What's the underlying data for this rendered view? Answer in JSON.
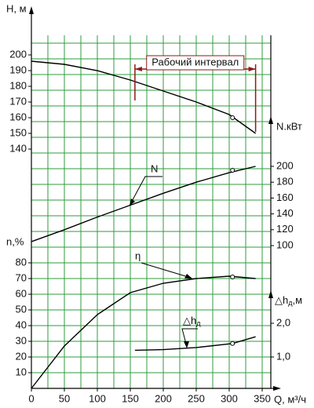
{
  "chart_data": [
    {
      "type": "line",
      "ylabel": "H, м",
      "xlabel": "Q, м³/ч",
      "xlim": [
        0,
        350
      ],
      "xticks": [
        0,
        50,
        100,
        150,
        200,
        250,
        300,
        350
      ],
      "ylim": [
        140,
        200
      ],
      "yticks": [
        140,
        150,
        160,
        170,
        180,
        190,
        200
      ],
      "x": [
        0,
        50,
        100,
        150,
        200,
        250,
        300,
        340
      ],
      "series": [
        {
          "values": [
            196,
            194,
            190,
            184,
            177,
            170,
            162,
            150
          ],
          "color": "#000000"
        }
      ],
      "marker": {
        "x": 305,
        "y": 160
      },
      "annotation": "Рабочий интервал",
      "interval": [
        157,
        340
      ],
      "interval_color": "#8b1a1a"
    },
    {
      "type": "line",
      "ylabel": "N.кВт",
      "ylim": [
        100,
        200
      ],
      "yticks": [
        100,
        120,
        140,
        160,
        180,
        200
      ],
      "x": [
        0,
        50,
        100,
        150,
        200,
        250,
        300,
        340
      ],
      "series": [
        {
          "values": [
            105,
            120,
            136,
            151,
            166,
            180,
            192,
            200
          ],
          "color": "#000000"
        }
      ],
      "marker": {
        "x": 305,
        "y": 195
      },
      "annotation": "N"
    },
    {
      "type": "line",
      "ylabel": "n,%",
      "ylim": [
        0,
        80
      ],
      "yticks": [
        10,
        20,
        30,
        40,
        50,
        60,
        70,
        80
      ],
      "x": [
        0,
        50,
        100,
        150,
        200,
        250,
        300,
        340
      ],
      "series": [
        {
          "values": [
            0,
            27,
            47,
            61,
            67,
            70,
            71.5,
            70
          ],
          "color": "#000000"
        }
      ],
      "marker": {
        "x": 305,
        "y": 71
      },
      "annotation": "η"
    },
    {
      "type": "line",
      "ylabel": [
        "△h",
        "д",
        ",м"
      ],
      "ylim": [
        1,
        2
      ],
      "yticks": [
        {
          "value": 1,
          "label": "1,0"
        },
        {
          "value": 2,
          "label": "2,0"
        }
      ],
      "x": [
        157,
        200,
        250,
        305,
        340
      ],
      "series": [
        {
          "values": [
            1.2,
            1.22,
            1.28,
            1.4,
            1.6
          ],
          "color": "#000000"
        }
      ],
      "marker": {
        "x": 305,
        "y": 1.4
      },
      "annotation": [
        "△h",
        "д"
      ]
    }
  ]
}
